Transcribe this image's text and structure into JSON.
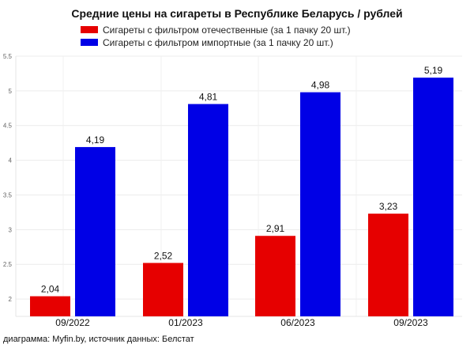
{
  "chart_data": {
    "type": "bar",
    "title": "Средние цены на сигареты в Республике Беларусь / рублей",
    "categories": [
      "09/2022",
      "01/2023",
      "06/2023",
      "09/2023"
    ],
    "series": [
      {
        "name": "Сигареты с фильтром отечественные (за 1 пачку 20 шт.)",
        "values": [
          2.04,
          2.52,
          2.91,
          3.23
        ],
        "labels": [
          "2,04",
          "2,52",
          "2,91",
          "3,23"
        ],
        "color": "#e60000"
      },
      {
        "name": "Сигареты с фильтром импортные (за 1 пачку 20 шт.)",
        "values": [
          4.19,
          4.81,
          4.98,
          5.19
        ],
        "labels": [
          "4,19",
          "4,81",
          "4,98",
          "5,19"
        ],
        "color": "#0000e6"
      }
    ],
    "yticks": [
      "2",
      "2.5",
      "3",
      "3.5",
      "4",
      "4.5",
      "5",
      "5.5"
    ],
    "ylim": [
      1.75,
      5.5
    ],
    "grid": true,
    "legend": "top",
    "xlabel": "",
    "ylabel": "",
    "source": "диаграмма: Myfin.by, источник данных: Белстат"
  }
}
